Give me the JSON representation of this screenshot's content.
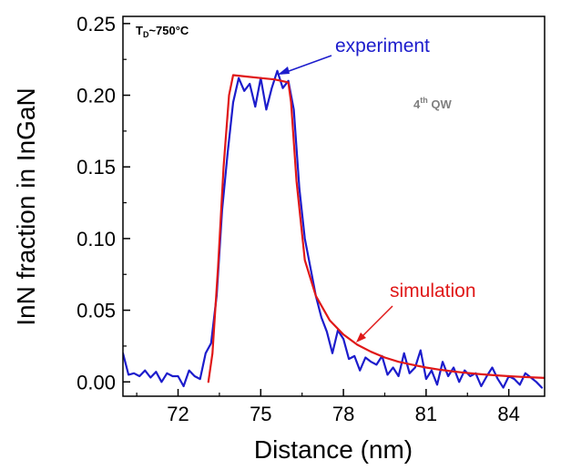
{
  "chart_data": {
    "type": "line",
    "title": "",
    "xlabel": "Distance (nm)",
    "ylabel": "InN fraction in InGaN",
    "xlim": [
      70.0,
      85.3
    ],
    "ylim": [
      -0.01,
      0.255
    ],
    "xticks": [
      72,
      75,
      78,
      81,
      84
    ],
    "xtick_labels": [
      "72",
      "75",
      "78",
      "81",
      "84"
    ],
    "yticks": [
      0.0,
      0.05,
      0.1,
      0.15,
      0.2,
      0.25
    ],
    "ytick_labels": [
      "0.00",
      "0.05",
      "0.10",
      "0.15",
      "0.20",
      "0.25"
    ],
    "grid": false,
    "series": [
      {
        "name": "experiment",
        "color": "#1c1ccc",
        "x": [
          70.0,
          70.2,
          70.4,
          70.6,
          70.8,
          71.0,
          71.2,
          71.4,
          71.6,
          71.8,
          72.0,
          72.2,
          72.4,
          72.6,
          72.8,
          73.0,
          73.2,
          73.4,
          73.6,
          73.8,
          74.0,
          74.2,
          74.4,
          74.6,
          74.8,
          75.0,
          75.2,
          75.4,
          75.6,
          75.8,
          76.0,
          76.2,
          76.4,
          76.6,
          76.8,
          77.0,
          77.2,
          77.4,
          77.6,
          77.8,
          78.0,
          78.2,
          78.4,
          78.6,
          78.8,
          79.0,
          79.2,
          79.4,
          79.6,
          79.8,
          80.0,
          80.2,
          80.4,
          80.6,
          80.8,
          81.0,
          81.2,
          81.4,
          81.6,
          81.8,
          82.0,
          82.2,
          82.4,
          82.6,
          82.8,
          83.0,
          83.2,
          83.4,
          83.6,
          83.8,
          84.0,
          84.2,
          84.4,
          84.6,
          84.8,
          85.0,
          85.2
        ],
        "y": [
          0.02,
          0.005,
          0.006,
          0.004,
          0.008,
          0.003,
          0.007,
          0.0,
          0.006,
          0.004,
          0.004,
          -0.003,
          0.008,
          0.004,
          0.002,
          0.02,
          0.027,
          0.06,
          0.12,
          0.16,
          0.195,
          0.212,
          0.203,
          0.208,
          0.192,
          0.212,
          0.19,
          0.205,
          0.217,
          0.205,
          0.21,
          0.19,
          0.135,
          0.1,
          0.08,
          0.06,
          0.045,
          0.035,
          0.02,
          0.036,
          0.03,
          0.016,
          0.018,
          0.008,
          0.017,
          0.014,
          0.012,
          0.018,
          0.005,
          0.01,
          0.004,
          0.02,
          0.006,
          0.01,
          0.022,
          0.002,
          0.008,
          -0.002,
          0.014,
          0.004,
          0.01,
          0.0,
          0.008,
          0.004,
          0.006,
          -0.003,
          0.004,
          0.01,
          0.002,
          -0.004,
          0.004,
          0.002,
          -0.002,
          0.006,
          0.003,
          0.0,
          -0.004
        ]
      },
      {
        "name": "simulation",
        "color": "#e01818",
        "x": [
          73.1,
          73.25,
          73.45,
          73.65,
          73.85,
          74.0,
          74.5,
          75.0,
          75.5,
          76.0,
          76.1,
          76.3,
          76.6,
          77.0,
          77.5,
          78.0,
          78.5,
          79.0,
          79.5,
          80.0,
          80.5,
          81.0,
          81.5,
          82.0,
          82.5,
          83.0,
          83.5,
          84.0,
          84.5,
          85.0,
          85.3
        ],
        "y": [
          0.0,
          0.02,
          0.08,
          0.15,
          0.2,
          0.214,
          0.213,
          0.212,
          0.211,
          0.209,
          0.195,
          0.14,
          0.085,
          0.06,
          0.043,
          0.033,
          0.026,
          0.021,
          0.017,
          0.014,
          0.012,
          0.01,
          0.0085,
          0.0072,
          0.0062,
          0.0053,
          0.0046,
          0.004,
          0.0035,
          0.003,
          0.0028
        ]
      }
    ],
    "annotations": [
      {
        "id": "td",
        "text_main": "T",
        "text_sub": "D",
        "text_rest": "~750°C"
      },
      {
        "id": "qw",
        "text_main": "4",
        "text_sup": "th",
        "text_rest": " QW"
      },
      {
        "id": "experiment",
        "text": "experiment"
      },
      {
        "id": "simulation",
        "text": "simulation"
      }
    ]
  }
}
